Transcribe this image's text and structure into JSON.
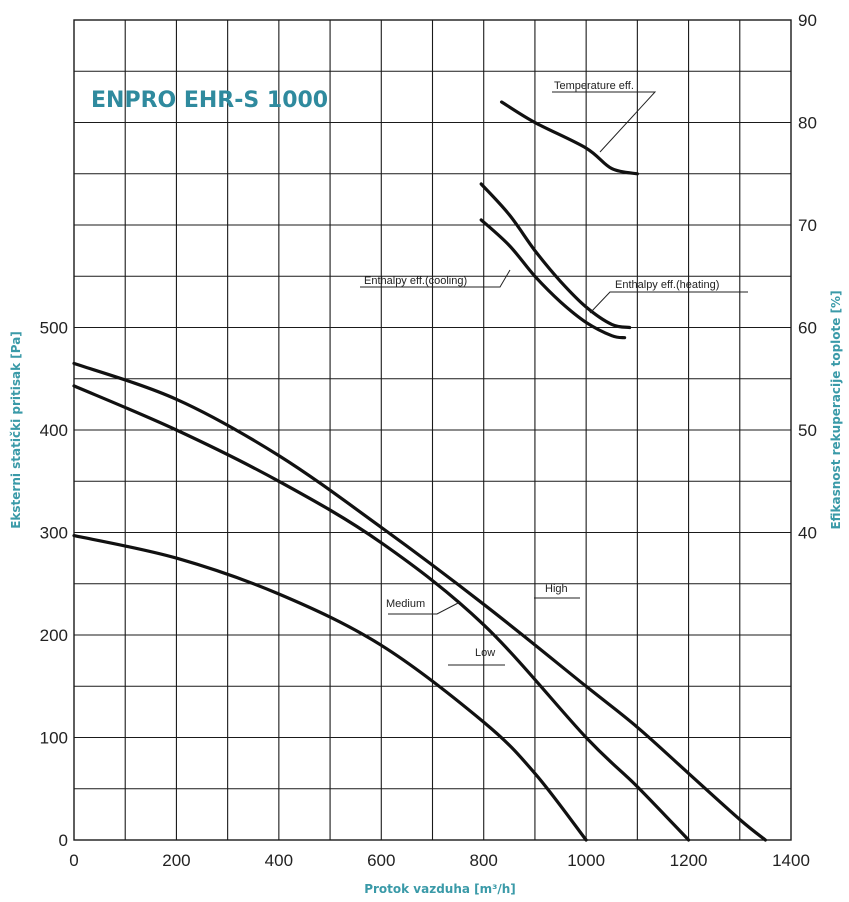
{
  "chart_data": {
    "type": "line",
    "title": "ENPRO EHR-S 1000",
    "xlabel": "Protok vazduha [m³/h]",
    "ylabel": "Eksterni statički pritisak [Pa]",
    "y2label": "Efikasnost rekuperacije toplote [%]",
    "xlim": [
      0,
      1400
    ],
    "ylim": [
      0,
      800
    ],
    "y2lim": [
      10,
      90
    ],
    "x_ticks": [
      0,
      200,
      400,
      600,
      800,
      1000,
      1200,
      1400
    ],
    "y_ticks": [
      0,
      100,
      200,
      300,
      400,
      500
    ],
    "y2_ticks": [
      40,
      50,
      60,
      70,
      80,
      90
    ],
    "grid": true,
    "series": [
      {
        "name": "High",
        "axis": "left",
        "x": [
          0,
          200,
          400,
          600,
          800,
          1000,
          1100,
          1200,
          1300,
          1350
        ],
        "y": [
          465,
          430,
          375,
          305,
          230,
          150,
          110,
          65,
          20,
          0
        ]
      },
      {
        "name": "Medium",
        "axis": "left",
        "x": [
          0,
          200,
          400,
          600,
          800,
          1000,
          1100,
          1200
        ],
        "y": [
          443,
          400,
          350,
          290,
          210,
          100,
          52,
          0
        ]
      },
      {
        "name": "Low",
        "axis": "left",
        "x": [
          0,
          200,
          400,
          600,
          800,
          900,
          1000
        ],
        "y": [
          297,
          275,
          240,
          190,
          115,
          65,
          0
        ]
      },
      {
        "name": "Temperature eff.",
        "axis": "right",
        "x": [
          835,
          900,
          1000,
          1050,
          1100
        ],
        "y": [
          82,
          80,
          77.5,
          75.5,
          75
        ]
      },
      {
        "name": "Enthalpy eff.(cooling)",
        "axis": "right",
        "x": [
          795,
          850,
          900,
          950,
          1000,
          1050,
          1075
        ],
        "y": [
          70.5,
          68,
          65,
          62.5,
          60.5,
          59.2,
          59
        ]
      },
      {
        "name": "Enthalpy eff.(heating)",
        "axis": "right",
        "x": [
          795,
          850,
          900,
          950,
          1000,
          1050,
          1085
        ],
        "y": [
          74,
          71,
          67.5,
          64.5,
          62,
          60.3,
          60
        ]
      }
    ]
  }
}
